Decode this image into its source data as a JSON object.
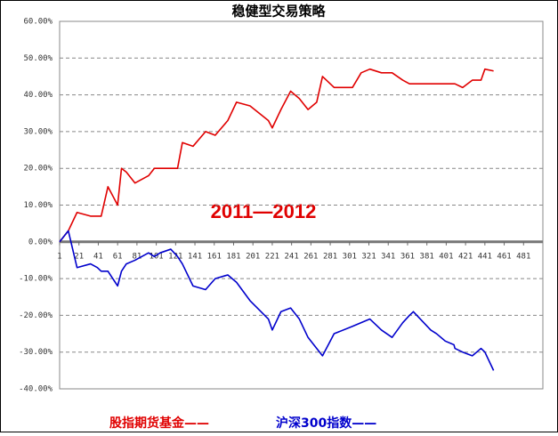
{
  "chart_data": {
    "type": "line",
    "title": "稳健型交易策略",
    "annotation": "2011—2012",
    "x": [
      1,
      10,
      19,
      33,
      40,
      44,
      51,
      61,
      65,
      70,
      79,
      93,
      99,
      105,
      116,
      123,
      128,
      139,
      152,
      162,
      175,
      184,
      198,
      217,
      221,
      230,
      240,
      249,
      258,
      267,
      273,
      285,
      304,
      313,
      322,
      334,
      345,
      356,
      363,
      367,
      385,
      391,
      400,
      409,
      410,
      418,
      428,
      437,
      441,
      450
    ],
    "series": [
      {
        "name": "股指期货基金——",
        "color": "#e00000",
        "values": [
          0,
          3,
          8,
          7,
          7,
          7,
          15,
          10,
          20,
          19,
          16,
          18,
          20,
          20,
          20,
          20,
          27,
          26,
          30,
          29,
          33,
          38,
          37,
          33,
          31,
          36,
          41,
          39,
          36,
          38,
          45,
          42,
          42,
          46,
          47,
          46,
          46,
          44,
          43,
          43,
          43,
          43,
          43,
          43,
          43,
          42,
          44,
          44,
          47,
          46.5
        ]
      },
      {
        "name": "沪深300指数——",
        "color": "#0000cc",
        "values": [
          0,
          3,
          -7,
          -6,
          -7,
          -8,
          -8,
          -12,
          -8,
          -6,
          -5,
          -3,
          -4,
          -3,
          -2,
          -4,
          -6,
          -12,
          -13,
          -10,
          -9,
          -11,
          -16,
          -21,
          -24,
          -19,
          -18,
          -21,
          -26,
          -29,
          -31,
          -25,
          -23,
          -22,
          -21,
          -24,
          -26,
          -22,
          -20,
          -19,
          -24,
          -25,
          -27,
          -28,
          -29,
          -30,
          -31,
          -29,
          -30,
          -35
        ]
      }
    ],
    "xlim": [
      1,
      501
    ],
    "xticks": [
      1,
      21,
      41,
      61,
      81,
      101,
      121,
      141,
      161,
      181,
      201,
      221,
      241,
      261,
      281,
      301,
      321,
      341,
      361,
      381,
      401,
      421,
      441,
      461,
      481
    ],
    "ylim": [
      -40,
      60
    ],
    "yticks": [
      {
        "value": -40,
        "label": "-40.00%"
      },
      {
        "value": -30,
        "label": "-30.00%"
      },
      {
        "value": -20,
        "label": "-20.00%"
      },
      {
        "value": -10,
        "label": "-10.00%"
      },
      {
        "value": 0,
        "label": "0.00%"
      },
      {
        "value": 10,
        "label": "10.00%"
      },
      {
        "value": 20,
        "label": "20.00%"
      },
      {
        "value": 30,
        "label": "30.00%"
      },
      {
        "value": 40,
        "label": "40.00%"
      },
      {
        "value": 50,
        "label": "50.00%"
      },
      {
        "value": 60,
        "label": "60.00%"
      }
    ],
    "grid": true
  }
}
